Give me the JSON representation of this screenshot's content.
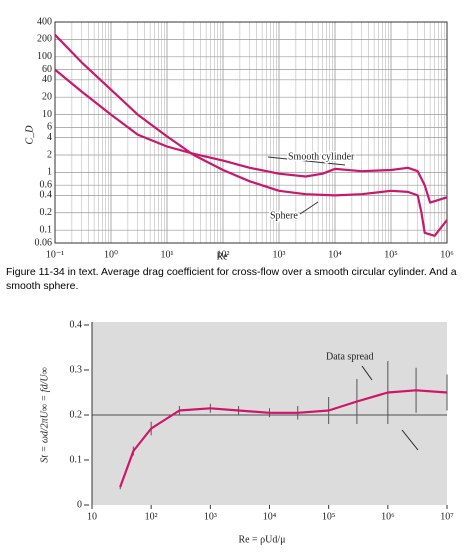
{
  "chart_data": [
    {
      "type": "line",
      "xlabel": "Re",
      "ylabel": "C_D",
      "xlog": true,
      "ylog": true,
      "grid": true,
      "minor_grid": true,
      "xlim": [
        0.1,
        1000000
      ],
      "ylim": [
        0.06,
        400
      ],
      "xticks": [
        {
          "value": 0.1,
          "label": "10⁻¹"
        },
        {
          "value": 1,
          "label": "10⁰"
        },
        {
          "value": 10,
          "label": "10¹"
        },
        {
          "value": 100,
          "label": "10²"
        },
        {
          "value": 1000,
          "label": "10³"
        },
        {
          "value": 10000,
          "label": "10⁴"
        },
        {
          "value": 100000,
          "label": "10⁵"
        },
        {
          "value": 1000000,
          "label": "10⁶"
        }
      ],
      "yticks": [
        0.06,
        0.1,
        0.2,
        0.4,
        0.6,
        1,
        2,
        4,
        6,
        10,
        20,
        40,
        60,
        100,
        200,
        400
      ],
      "series": [
        {
          "name": "Smooth cylinder",
          "color": "#c8186e",
          "x": [
            0.1,
            0.3,
            1,
            3,
            10,
            30,
            100,
            300,
            1000,
            3000,
            6000,
            10000,
            30000,
            100000,
            200000,
            300000,
            400000,
            500000,
            1000000
          ],
          "values": [
            60,
            25,
            10,
            4.5,
            2.8,
            2.1,
            1.6,
            1.2,
            0.95,
            0.85,
            0.95,
            1.15,
            1.05,
            1.1,
            1.2,
            1.05,
            0.6,
            0.3,
            0.37
          ]
        },
        {
          "name": "Sphere",
          "color": "#c8186e",
          "x": [
            0.1,
            0.3,
            1,
            3,
            10,
            30,
            100,
            300,
            1000,
            3000,
            10000,
            30000,
            100000,
            200000,
            300000,
            350000,
            400000,
            600000,
            1000000
          ],
          "values": [
            240,
            80,
            27,
            10,
            4.2,
            2,
            1.1,
            0.7,
            0.48,
            0.42,
            0.4,
            0.42,
            0.48,
            0.46,
            0.4,
            0.2,
            0.09,
            0.08,
            0.15
          ]
        }
      ]
    },
    {
      "type": "line",
      "xlabel": "Re = ρUd/μ",
      "ylabel": "St = ωd/2πU∞ = fd/U∞",
      "annotation": "Data spread",
      "xlog": true,
      "xlim": [
        10,
        10000000
      ],
      "ylim": [
        0,
        0.4
      ],
      "xticks": [
        10,
        {
          "value": 100,
          "label": "10²"
        },
        {
          "value": 1000,
          "label": "10³"
        },
        {
          "value": 10000,
          "label": "10⁴"
        },
        {
          "value": 100000,
          "label": "10⁵"
        },
        {
          "value": 1000000,
          "label": "10⁶"
        },
        {
          "value": 10000000,
          "label": "10⁷"
        }
      ],
      "yticks": [
        0,
        0.1,
        0.2,
        0.3,
        0.4
      ],
      "reference_line": 0.2,
      "background": "#dcdcdc",
      "series": [
        {
          "color": "#d0146a",
          "x": [
            30,
            50,
            100,
            300,
            1000,
            3000,
            10000,
            30000,
            100000,
            300000,
            1000000,
            3000000,
            10000000
          ],
          "values": [
            0.04,
            0.12,
            0.17,
            0.21,
            0.215,
            0.21,
            0.205,
            0.205,
            0.21,
            0.23,
            0.25,
            0.255,
            0.25
          ],
          "errors": [
            0.005,
            0.01,
            0.015,
            0.01,
            0.01,
            0.01,
            0.01,
            0.015,
            0.03,
            0.05,
            0.07,
            0.05,
            0.04
          ]
        }
      ]
    }
  ],
  "caption": "Figure 11-34 in text.  Average drag coefficient for cross-flow over a smooth circular cylinder. And a smooth sphere."
}
